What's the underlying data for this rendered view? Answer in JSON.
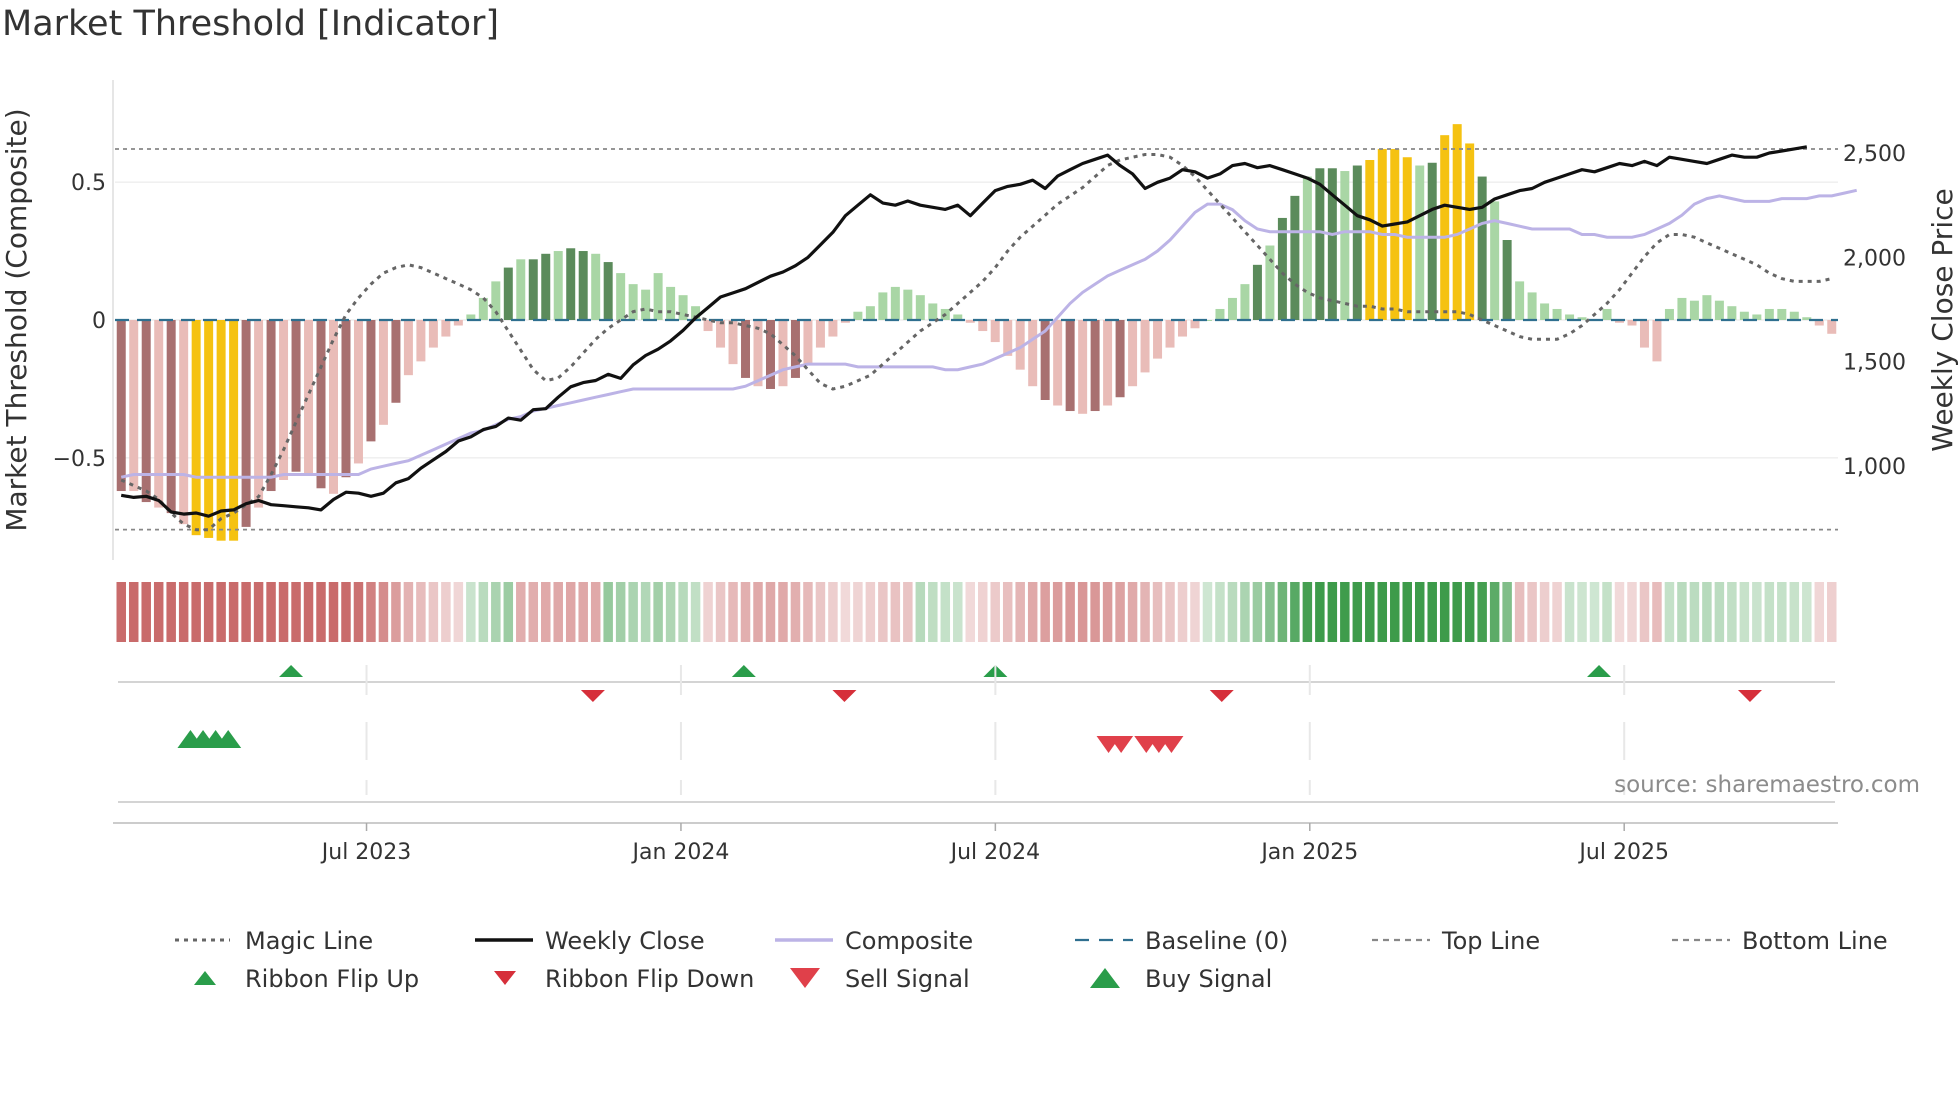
{
  "title": "Market Threshold [Indicator]",
  "source": "source: sharemaestro.com",
  "chart_data": {
    "type": "bar+line",
    "title": "Market Threshold [Indicator]",
    "ylabel_left": "Market Threshold (Composite)",
    "ylabel_right": "Weekly Close Price",
    "ylim_left": [
      -0.87,
      0.87
    ],
    "ylim_right": [
      550,
      2850
    ],
    "yticks_left": [
      {
        "value": 0.5,
        "label": "0.5"
      },
      {
        "value": 0,
        "label": "0"
      },
      {
        "value": -0.5,
        "label": "−0.5"
      }
    ],
    "yticks_right": [
      {
        "value": 2500,
        "label": "2,500"
      },
      {
        "value": 2000,
        "label": "2,000"
      },
      {
        "value": 1500,
        "label": "1,500"
      },
      {
        "value": 1000,
        "label": "1,000"
      }
    ],
    "x_week_range": [
      0,
      137
    ],
    "xticks": [
      {
        "week": 20,
        "label": "Jul 2023"
      },
      {
        "week": 45,
        "label": "Jan 2024"
      },
      {
        "week": 70,
        "label": "Jul 2024"
      },
      {
        "week": 95,
        "label": "Jan 2025"
      },
      {
        "week": 120,
        "label": "Jul 2025"
      }
    ],
    "top_line": 0.62,
    "bottom_line": -0.76,
    "baseline": 0,
    "composite_bars": [
      -0.62,
      -0.62,
      -0.66,
      -0.68,
      -0.7,
      -0.74,
      -0.78,
      -0.79,
      -0.8,
      -0.8,
      -0.75,
      -0.68,
      -0.62,
      -0.58,
      -0.55,
      -0.56,
      -0.61,
      -0.63,
      -0.57,
      -0.52,
      -0.44,
      -0.38,
      -0.3,
      -0.2,
      -0.15,
      -0.1,
      -0.06,
      -0.02,
      0.02,
      0.08,
      0.14,
      0.19,
      0.22,
      0.22,
      0.24,
      0.25,
      0.26,
      0.25,
      0.24,
      0.21,
      0.17,
      0.13,
      0.11,
      0.17,
      0.12,
      0.09,
      0.05,
      -0.04,
      -0.1,
      -0.16,
      -0.21,
      -0.24,
      -0.25,
      -0.24,
      -0.21,
      -0.16,
      -0.1,
      -0.06,
      -0.01,
      0.03,
      0.05,
      0.1,
      0.12,
      0.11,
      0.09,
      0.06,
      0.04,
      0.02,
      -0.01,
      -0.04,
      -0.08,
      -0.13,
      -0.18,
      -0.24,
      -0.29,
      -0.31,
      -0.33,
      -0.34,
      -0.33,
      -0.31,
      -0.28,
      -0.24,
      -0.19,
      -0.14,
      -0.1,
      -0.06,
      -0.03,
      0.0,
      0.04,
      0.08,
      0.13,
      0.2,
      0.27,
      0.37,
      0.45,
      0.52,
      0.55,
      0.55,
      0.54,
      0.56,
      0.58,
      0.62,
      0.62,
      0.59,
      0.56,
      0.57,
      0.67,
      0.71,
      0.64,
      0.52,
      0.43,
      0.29,
      0.14,
      0.1,
      0.06,
      0.04,
      0.02,
      0.01,
      0.0,
      0.04,
      -0.01,
      -0.02,
      -0.1,
      -0.15,
      0.04,
      0.08,
      0.07,
      0.09,
      0.07,
      0.05,
      0.03,
      0.02,
      0.04,
      0.04,
      0.03,
      0.01,
      -0.02,
      -0.05
    ],
    "composite_line": [
      -0.57,
      -0.56,
      -0.56,
      -0.56,
      -0.56,
      -0.56,
      -0.57,
      -0.57,
      -0.57,
      -0.57,
      -0.57,
      -0.57,
      -0.57,
      -0.56,
      -0.56,
      -0.56,
      -0.56,
      -0.56,
      -0.56,
      -0.56,
      -0.54,
      -0.53,
      -0.52,
      -0.51,
      -0.49,
      -0.47,
      -0.45,
      -0.43,
      -0.41,
      -0.4,
      -0.38,
      -0.36,
      -0.35,
      -0.33,
      -0.32,
      -0.31,
      -0.3,
      -0.29,
      -0.28,
      -0.27,
      -0.26,
      -0.25,
      -0.25,
      -0.25,
      -0.25,
      -0.25,
      -0.25,
      -0.25,
      -0.25,
      -0.25,
      -0.24,
      -0.22,
      -0.2,
      -0.18,
      -0.17,
      -0.16,
      -0.16,
      -0.16,
      -0.16,
      -0.17,
      -0.17,
      -0.17,
      -0.17,
      -0.17,
      -0.17,
      -0.17,
      -0.18,
      -0.18,
      -0.17,
      -0.16,
      -0.14,
      -0.12,
      -0.1,
      -0.07,
      -0.04,
      0.01,
      0.06,
      0.1,
      0.13,
      0.16,
      0.18,
      0.2,
      0.22,
      0.25,
      0.29,
      0.34,
      0.39,
      0.42,
      0.42,
      0.4,
      0.36,
      0.33,
      0.32,
      0.32,
      0.32,
      0.32,
      0.32,
      0.31,
      0.32,
      0.32,
      0.32,
      0.31,
      0.31,
      0.3,
      0.3,
      0.3,
      0.3,
      0.31,
      0.33,
      0.35,
      0.36,
      0.35,
      0.34,
      0.33,
      0.33,
      0.33,
      0.33,
      0.31,
      0.31,
      0.3,
      0.3,
      0.3,
      0.31,
      0.33,
      0.35,
      0.38,
      0.42,
      0.44,
      0.45,
      0.44,
      0.43,
      0.43,
      0.43,
      0.44,
      0.44,
      0.44,
      0.45,
      0.45,
      0.46,
      0.47
    ],
    "magic_line": [
      -0.58,
      -0.6,
      -0.62,
      -0.65,
      -0.7,
      -0.74,
      -0.76,
      -0.76,
      -0.72,
      -0.7,
      -0.67,
      -0.64,
      -0.56,
      -0.47,
      -0.37,
      -0.27,
      -0.17,
      -0.07,
      0.02,
      0.08,
      0.13,
      0.17,
      0.19,
      0.2,
      0.19,
      0.17,
      0.15,
      0.13,
      0.11,
      0.08,
      0.03,
      -0.04,
      -0.11,
      -0.18,
      -0.22,
      -0.21,
      -0.17,
      -0.12,
      -0.07,
      -0.03,
      0.0,
      0.03,
      0.04,
      0.03,
      0.03,
      0.02,
      0.01,
      0.0,
      -0.01,
      -0.01,
      -0.02,
      -0.03,
      -0.05,
      -0.09,
      -0.13,
      -0.18,
      -0.23,
      -0.25,
      -0.24,
      -0.22,
      -0.2,
      -0.16,
      -0.12,
      -0.08,
      -0.04,
      -0.01,
      0.02,
      0.06,
      0.1,
      0.14,
      0.19,
      0.25,
      0.3,
      0.34,
      0.38,
      0.42,
      0.45,
      0.48,
      0.52,
      0.56,
      0.58,
      0.59,
      0.6,
      0.6,
      0.59,
      0.56,
      0.52,
      0.47,
      0.42,
      0.37,
      0.32,
      0.27,
      0.22,
      0.17,
      0.13,
      0.1,
      0.08,
      0.07,
      0.06,
      0.05,
      0.05,
      0.04,
      0.04,
      0.03,
      0.03,
      0.03,
      0.03,
      0.03,
      0.02,
      0.0,
      -0.02,
      -0.04,
      -0.06,
      -0.07,
      -0.07,
      -0.07,
      -0.05,
      -0.02,
      0.02,
      0.06,
      0.11,
      0.17,
      0.23,
      0.28,
      0.31,
      0.31,
      0.3,
      0.28,
      0.26,
      0.24,
      0.22,
      0.2,
      0.17,
      0.15,
      0.14,
      0.14,
      0.14,
      0.15
    ],
    "weekly_close": [
      860,
      850,
      855,
      835,
      780,
      770,
      775,
      760,
      785,
      790,
      820,
      835,
      815,
      810,
      805,
      800,
      790,
      840,
      875,
      870,
      855,
      870,
      920,
      940,
      990,
      1030,
      1070,
      1120,
      1140,
      1175,
      1190,
      1230,
      1220,
      1270,
      1275,
      1330,
      1380,
      1400,
      1410,
      1440,
      1420,
      1485,
      1530,
      1560,
      1600,
      1650,
      1710,
      1760,
      1810,
      1830,
      1850,
      1880,
      1910,
      1930,
      1960,
      2000,
      2060,
      2120,
      2200,
      2250,
      2300,
      2260,
      2250,
      2270,
      2250,
      2240,
      2230,
      2250,
      2200,
      2260,
      2320,
      2340,
      2350,
      2370,
      2330,
      2390,
      2420,
      2450,
      2470,
      2490,
      2440,
      2400,
      2330,
      2360,
      2380,
      2420,
      2410,
      2380,
      2400,
      2440,
      2450,
      2430,
      2440,
      2420,
      2400,
      2380,
      2350,
      2300,
      2250,
      2200,
      2180,
      2150,
      2160,
      2170,
      2200,
      2230,
      2250,
      2240,
      2230,
      2240,
      2280,
      2300,
      2320,
      2330,
      2360,
      2380,
      2400,
      2420,
      2410,
      2430,
      2450,
      2440,
      2460,
      2440,
      2480,
      2470,
      2460,
      2450,
      2470,
      2490,
      2480,
      2480,
      2500,
      2510,
      2520,
      2530
    ],
    "ribbon_flip_up_weeks": [
      14,
      50,
      70,
      118
    ],
    "ribbon_flip_down_weeks": [
      38,
      58,
      88,
      130
    ],
    "buy_signal_weeks": [
      6,
      7,
      8,
      9
    ],
    "sell_signal_weeks": [
      79,
      80,
      82,
      83,
      84
    ],
    "legend": [
      {
        "label": "Magic Line",
        "symbol": "dotted-line",
        "color": "#666666"
      },
      {
        "label": "Weekly Close",
        "symbol": "solid-line",
        "color": "#111111"
      },
      {
        "label": "Composite",
        "symbol": "solid-line",
        "color": "#bcb3e6"
      },
      {
        "label": "Baseline (0)",
        "symbol": "dashed-line",
        "color": "#2f6f8f"
      },
      {
        "label": "Top Line",
        "symbol": "dashed-line",
        "color": "#888888"
      },
      {
        "label": "Bottom Line",
        "symbol": "dashed-line",
        "color": "#888888"
      },
      {
        "label": "Ribbon Flip Up",
        "symbol": "triangle-up",
        "color": "#2a9d4a"
      },
      {
        "label": "Ribbon Flip Down",
        "symbol": "triangle-down",
        "color": "#d62f3a"
      },
      {
        "label": "Sell Signal",
        "symbol": "triangle-down",
        "color": "#e0404a"
      },
      {
        "label": "Buy Signal",
        "symbol": "triangle-up",
        "color": "#2a9d4a"
      }
    ]
  },
  "colors": {
    "strong_positive": "#5b8b5b",
    "weak_positive": "#a9d6a5",
    "strong_negative": "#a87070",
    "weak_negative": "#e9bcb8",
    "extreme": "#f5c211",
    "ribbon_positive": "#3d9b4a",
    "ribbon_negative": "#c96b6b",
    "grid": "#e6e6e6"
  }
}
